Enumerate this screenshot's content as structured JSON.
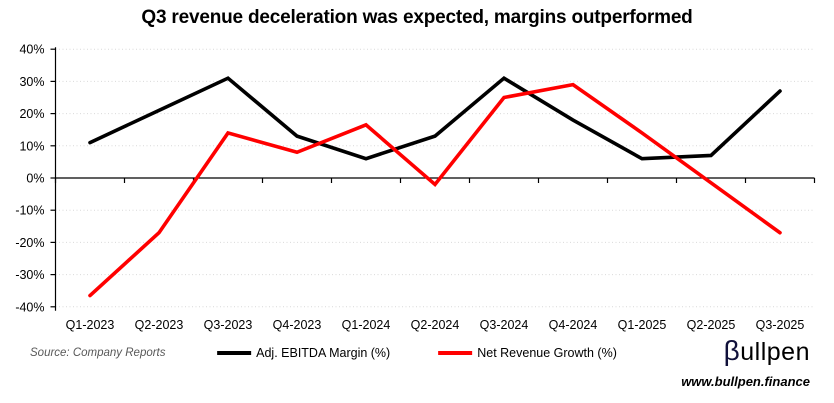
{
  "title": "Q3 revenue deceleration was expected, margins outperformed",
  "chart_data": {
    "type": "line",
    "categories": [
      "Q1-2023",
      "Q2-2023",
      "Q3-2023",
      "Q4-2023",
      "Q1-2024",
      "Q2-2024",
      "Q3-2024",
      "Q4-2024",
      "Q1-2025",
      "Q2-2025",
      "Q3-2025"
    ],
    "series": [
      {
        "name": "Adj. EBITDA Margin (%)",
        "color": "#000000",
        "values": [
          11,
          21,
          31,
          13,
          6,
          13,
          31,
          18,
          6,
          7,
          27
        ]
      },
      {
        "name": "Net Revenue Growth (%)",
        "color": "#ff0000",
        "values": [
          -36.5,
          -17,
          14,
          8,
          16.5,
          -2,
          25,
          29,
          14,
          -1.5,
          -17
        ]
      }
    ],
    "ylim": [
      -40,
      40
    ],
    "ytick_step": 10,
    "ytick_suffix": "%",
    "grid": "horizontal-dotted",
    "legend_position": "bottom-center"
  },
  "footer": {
    "source": "Source: Company Reports",
    "logo_beta": "β",
    "logo_rest": "ullpen",
    "url": "www.bullpen.finance"
  },
  "colors": {
    "grid": "#d9d9d9",
    "axis": "#000000",
    "series_black": "#000000",
    "series_red": "#ff0000",
    "source_text": "#595959"
  }
}
